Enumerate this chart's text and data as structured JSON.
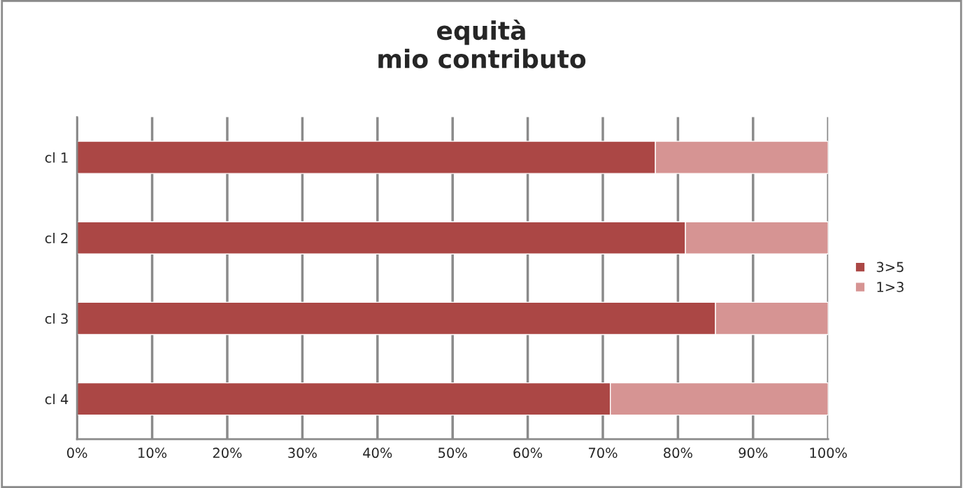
{
  "chart_data": {
    "type": "bar",
    "title": "equità\nmio contributo",
    "orientation": "horizontal",
    "stacked": true,
    "categories": [
      "cl 1",
      "cl 2",
      "cl 3",
      "cl 4"
    ],
    "series": [
      {
        "name": "3>5",
        "color": "#ab4745",
        "values": [
          77,
          81,
          85,
          71
        ]
      },
      {
        "name": "1>3",
        "color": "#d69493",
        "values": [
          23,
          19,
          15,
          29
        ]
      }
    ],
    "xlim": [
      0,
      100
    ],
    "xticks": [
      {
        "value": 0,
        "label": "0%"
      },
      {
        "value": 10,
        "label": "10%"
      },
      {
        "value": 20,
        "label": "20%"
      },
      {
        "value": 30,
        "label": "30%"
      },
      {
        "value": 40,
        "label": "40%"
      },
      {
        "value": 50,
        "label": "50%"
      },
      {
        "value": 60,
        "label": "60%"
      },
      {
        "value": 70,
        "label": "70%"
      },
      {
        "value": 80,
        "label": "80%"
      },
      {
        "value": 90,
        "label": "90%"
      },
      {
        "value": 100,
        "label": "100%"
      }
    ],
    "grid": "x",
    "legend": "right"
  }
}
